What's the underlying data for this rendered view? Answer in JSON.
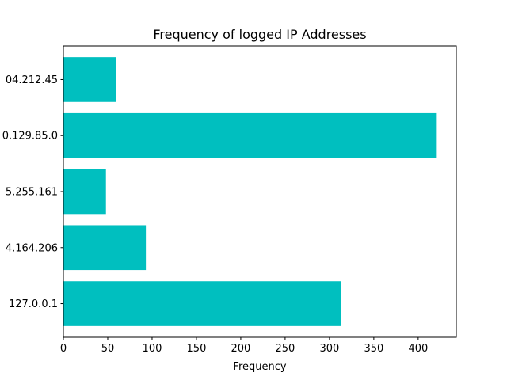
{
  "chart_data": {
    "type": "bar",
    "orientation": "horizontal",
    "title": "Frequency of logged IP Addresses",
    "xlabel": "Frequency",
    "ylabel": "",
    "categories": [
      "127.0.0.1",
      "4.164.206",
      "5.255.161",
      "0.129.85.0",
      "04.212.45"
    ],
    "values": [
      313,
      93,
      48,
      421,
      59
    ],
    "xlim": [
      0,
      443
    ],
    "xticks": [
      0,
      50,
      100,
      150,
      200,
      250,
      300,
      350,
      400
    ],
    "bar_color": "#00bfbf",
    "grid": false,
    "legend": "none"
  }
}
